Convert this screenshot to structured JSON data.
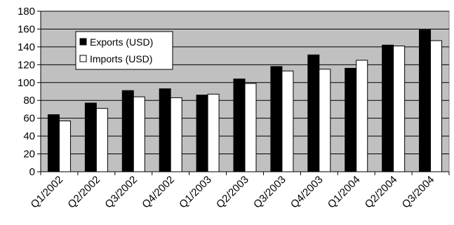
{
  "chart_data": {
    "type": "bar",
    "title": "",
    "xlabel": "",
    "ylabel": "",
    "ylim": [
      0,
      180
    ],
    "y_ticks": [
      0,
      20,
      40,
      60,
      80,
      100,
      120,
      140,
      160,
      180
    ],
    "grid": true,
    "legend_position": "top-left",
    "categories": [
      "Q1/2002",
      "Q2/2002",
      "Q3/2002",
      "Q4/2002",
      "Q1/2003",
      "Q2/2003",
      "Q3/2003",
      "Q4/2003",
      "Q1/2004",
      "Q2/2004",
      "Q3/2004"
    ],
    "series": [
      {
        "name": "Exports (USD)",
        "color": "#000000",
        "values": [
          64,
          77,
          91,
          93,
          86,
          104,
          118,
          131,
          116,
          142,
          159
        ]
      },
      {
        "name": "Imports (USD)",
        "color": "#ffffff",
        "values": [
          57,
          71,
          84,
          83,
          87,
          99,
          113,
          115,
          125,
          141,
          147
        ]
      }
    ]
  },
  "colors": {
    "plot_background": "#c0c0c0",
    "gridline": "#000000",
    "bar_stroke": "#000000"
  }
}
